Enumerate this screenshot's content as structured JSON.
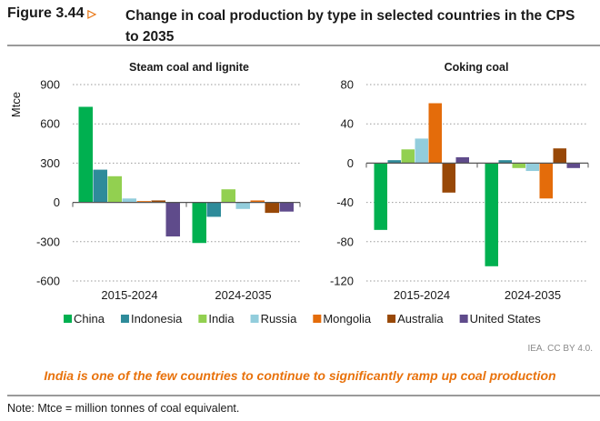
{
  "figure": {
    "label": "Figure 3.44",
    "title": "Change in coal production by type in selected countries in the CPS to 2035",
    "credit": "IEA. CC BY 4.0.",
    "takeaway": "India is one of the few countries to continue to significantly ramp up coal production",
    "note": "Note: Mtce = million tonnes of coal equivalent."
  },
  "chart_data": [
    {
      "type": "bar",
      "title": "Steam coal and lignite",
      "ylabel": "Mtce",
      "ylim": [
        -600,
        900
      ],
      "yticks": [
        900,
        600,
        300,
        0,
        -300,
        -600
      ],
      "grid": true,
      "legend": "bottom",
      "categories": [
        "2015-2024",
        "2024-2035"
      ],
      "series": [
        {
          "name": "China",
          "color": "#00b050",
          "values": [
            730,
            -310
          ]
        },
        {
          "name": "Indonesia",
          "color": "#2e8b9a",
          "values": [
            250,
            -110
          ]
        },
        {
          "name": "India",
          "color": "#92d050",
          "values": [
            200,
            100
          ]
        },
        {
          "name": "Russia",
          "color": "#92cddc",
          "values": [
            30,
            -50
          ]
        },
        {
          "name": "Mongolia",
          "color": "#e46c0a",
          "values": [
            10,
            15
          ]
        },
        {
          "name": "Australia",
          "color": "#984807",
          "values": [
            15,
            -80
          ]
        },
        {
          "name": "United States",
          "color": "#5f4b8b",
          "values": [
            -260,
            -70
          ]
        }
      ]
    },
    {
      "type": "bar",
      "title": "Coking coal",
      "ylim": [
        -120,
        80
      ],
      "yticks": [
        80,
        40,
        0,
        -40,
        -80,
        -120
      ],
      "grid": true,
      "legend": "bottom",
      "categories": [
        "2015-2024",
        "2024-2035"
      ],
      "series": [
        {
          "name": "China",
          "color": "#00b050",
          "values": [
            -68,
            -105
          ]
        },
        {
          "name": "Indonesia",
          "color": "#2e8b9a",
          "values": [
            3,
            3
          ]
        },
        {
          "name": "India",
          "color": "#92d050",
          "values": [
            14,
            -5
          ]
        },
        {
          "name": "Russia",
          "color": "#92cddc",
          "values": [
            25,
            -8
          ]
        },
        {
          "name": "Mongolia",
          "color": "#e46c0a",
          "values": [
            61,
            -36
          ]
        },
        {
          "name": "Australia",
          "color": "#984807",
          "values": [
            -30,
            15
          ]
        },
        {
          "name": "United States",
          "color": "#5f4b8b",
          "values": [
            6,
            -5
          ]
        }
      ]
    }
  ]
}
